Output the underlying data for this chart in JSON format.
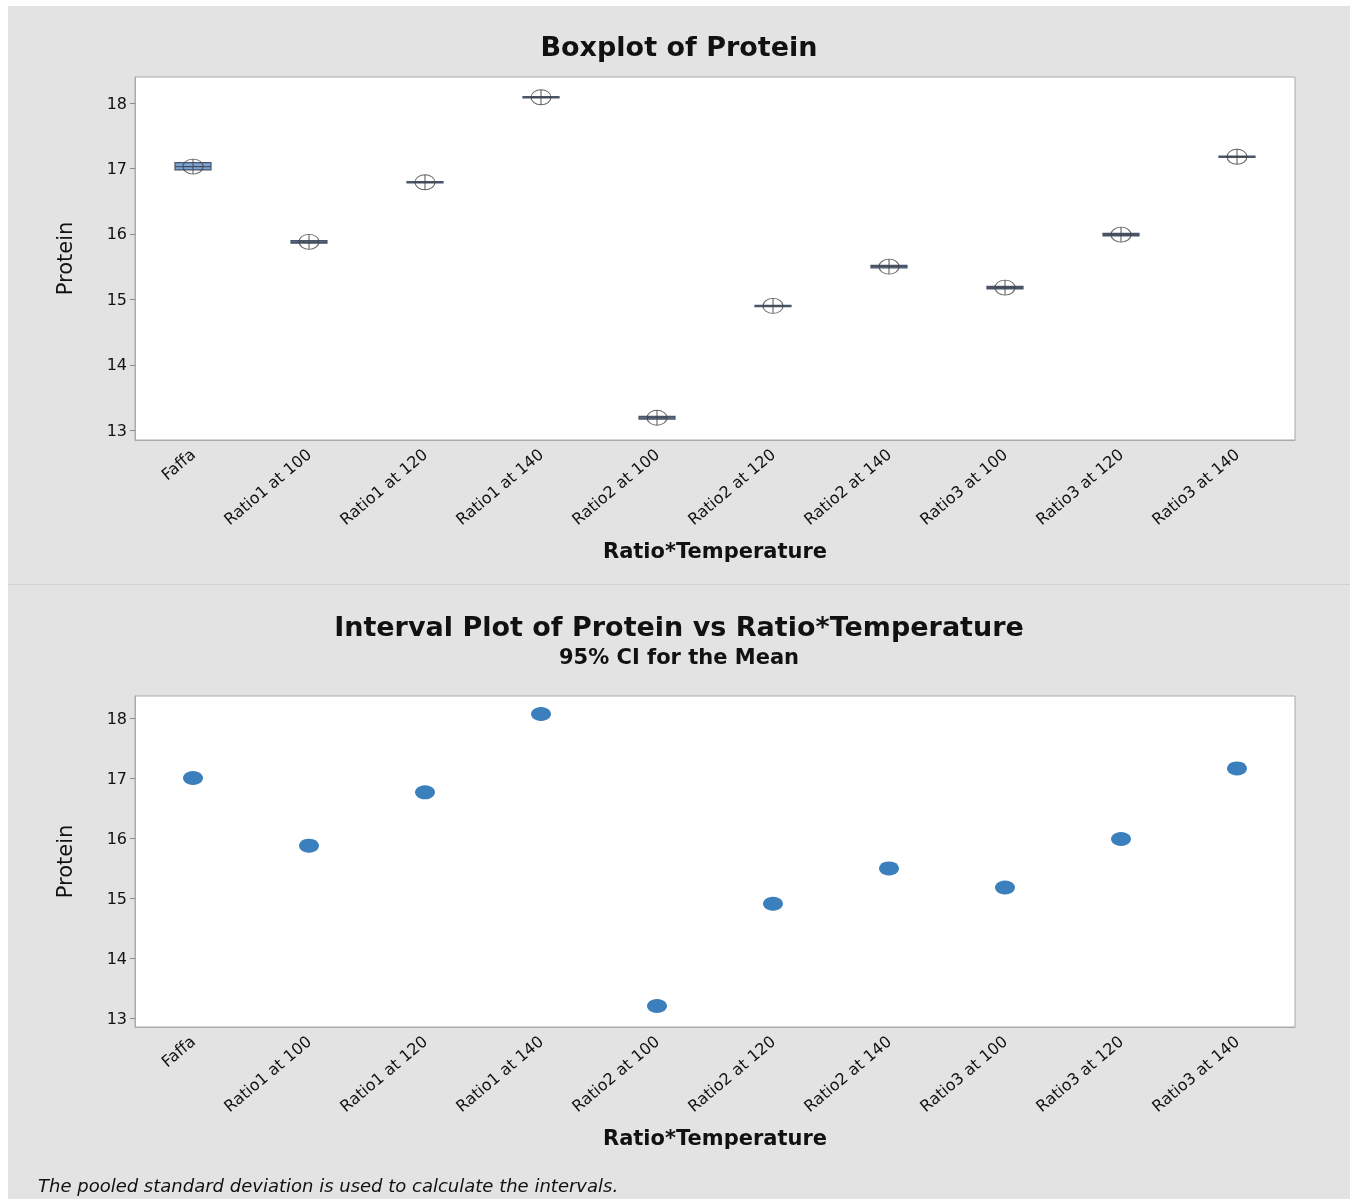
{
  "chart_data": [
    {
      "type": "box",
      "title": "Boxplot of Protein",
      "xlabel": "Ratio*Temperature",
      "ylabel": "Protein",
      "categories": [
        "Faffa",
        "Ratio1 at 100",
        "Ratio1 at 120",
        "Ratio1 at 140",
        "Ratio2 at 100",
        "Ratio2 at 120",
        "Ratio2 at 140",
        "Ratio3 at 100",
        "Ratio3 at 120",
        "Ratio3 at 140"
      ],
      "color": "#7ba3d6",
      "boxes": [
        {
          "low": 16.98,
          "q1": 16.98,
          "median": 17.03,
          "q3": 17.09,
          "high": 17.09,
          "mean": 17.03
        },
        {
          "low": 15.86,
          "q1": 15.86,
          "median": 15.88,
          "q3": 15.9,
          "high": 15.9,
          "mean": 15.88
        },
        {
          "low": 16.78,
          "q1": 16.78,
          "median": 16.79,
          "q3": 16.8,
          "high": 16.8,
          "mean": 16.79
        },
        {
          "low": 18.08,
          "q1": 18.08,
          "median": 18.09,
          "q3": 18.1,
          "high": 18.1,
          "mean": 18.09
        },
        {
          "low": 13.17,
          "q1": 13.17,
          "median": 13.19,
          "q3": 13.21,
          "high": 13.21,
          "mean": 13.19
        },
        {
          "low": 14.89,
          "q1": 14.89,
          "median": 14.9,
          "q3": 14.91,
          "high": 14.91,
          "mean": 14.9
        },
        {
          "low": 15.48,
          "q1": 15.48,
          "median": 15.5,
          "q3": 15.52,
          "high": 15.52,
          "mean": 15.5
        },
        {
          "low": 15.16,
          "q1": 15.16,
          "median": 15.18,
          "q3": 15.2,
          "high": 15.2,
          "mean": 15.18
        },
        {
          "low": 15.97,
          "q1": 15.97,
          "median": 15.99,
          "q3": 16.01,
          "high": 16.01,
          "mean": 15.99
        },
        {
          "low": 17.17,
          "q1": 17.17,
          "median": 17.18,
          "q3": 17.19,
          "high": 17.19,
          "mean": 17.18
        }
      ],
      "ylim": [
        12.85,
        18.4
      ],
      "yticks": [
        13,
        14,
        15,
        16,
        17,
        18
      ],
      "grid": false
    },
    {
      "type": "scatter",
      "title": "Interval Plot of Protein vs Ratio*Temperature",
      "subtitle": "95% CI for the Mean",
      "xlabel": "Ratio*Temperature",
      "ylabel": "Protein",
      "categories": [
        "Faffa",
        "Ratio1 at 100",
        "Ratio1 at 120",
        "Ratio1 at 140",
        "Ratio2 at 100",
        "Ratio2 at 120",
        "Ratio2 at 140",
        "Ratio3 at 100",
        "Ratio3 at 120",
        "Ratio3 at 140"
      ],
      "values": [
        17.01,
        15.88,
        16.77,
        18.08,
        13.2,
        14.91,
        15.5,
        15.18,
        15.99,
        17.17
      ],
      "color": "#0a5fab",
      "marker": "circle",
      "ylim": [
        12.85,
        18.38
      ],
      "yticks": [
        13,
        14,
        15,
        16,
        17,
        18
      ],
      "grid": false,
      "annotations": [
        "The pooled standard deviation is used to calculate the intervals."
      ]
    }
  ]
}
